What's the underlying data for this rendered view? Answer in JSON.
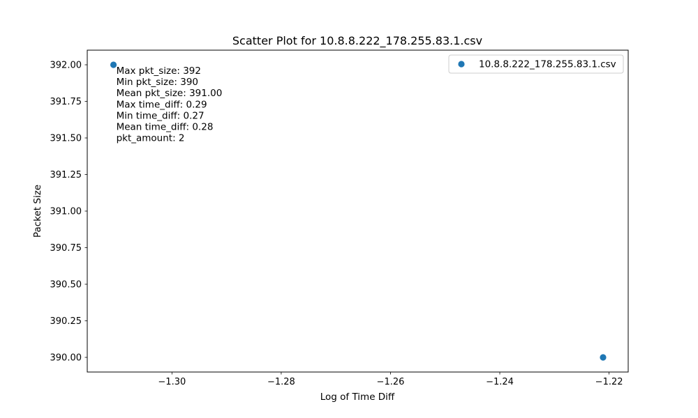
{
  "chart_data": {
    "type": "scatter",
    "title": "Scatter Plot for 10.8.8.222_178.255.83.1.csv",
    "xlabel": "Log of Time Diff",
    "ylabel": "Packet Size",
    "xlim": [
      -1.3155,
      -1.2165
    ],
    "ylim": [
      389.9,
      392.1
    ],
    "xticks": [
      -1.3,
      -1.28,
      -1.26,
      -1.24,
      -1.22
    ],
    "xtick_labels": [
      "−1.30",
      "−1.28",
      "−1.26",
      "−1.24",
      "−1.22"
    ],
    "yticks": [
      390.0,
      390.25,
      390.5,
      390.75,
      391.0,
      391.25,
      391.5,
      391.75,
      392.0
    ],
    "ytick_labels": [
      "390.00",
      "390.25",
      "390.50",
      "390.75",
      "391.00",
      "391.25",
      "391.50",
      "391.75",
      "392.00"
    ],
    "grid": false,
    "legend_position": "top-right",
    "series": [
      {
        "name": "10.8.8.222_178.255.83.1.csv",
        "color": "#1f77b4",
        "points": [
          {
            "x": -1.3107,
            "y": 392
          },
          {
            "x": -1.2211,
            "y": 390
          }
        ]
      }
    ],
    "annotations": [
      "Max pkt_size: 392",
      "Min pkt_size: 390",
      "Mean pkt_size: 391.00",
      "Max time_diff: 0.29",
      "Min time_diff: 0.27",
      "Mean time_diff: 0.28",
      "pkt_amount: 2"
    ]
  }
}
